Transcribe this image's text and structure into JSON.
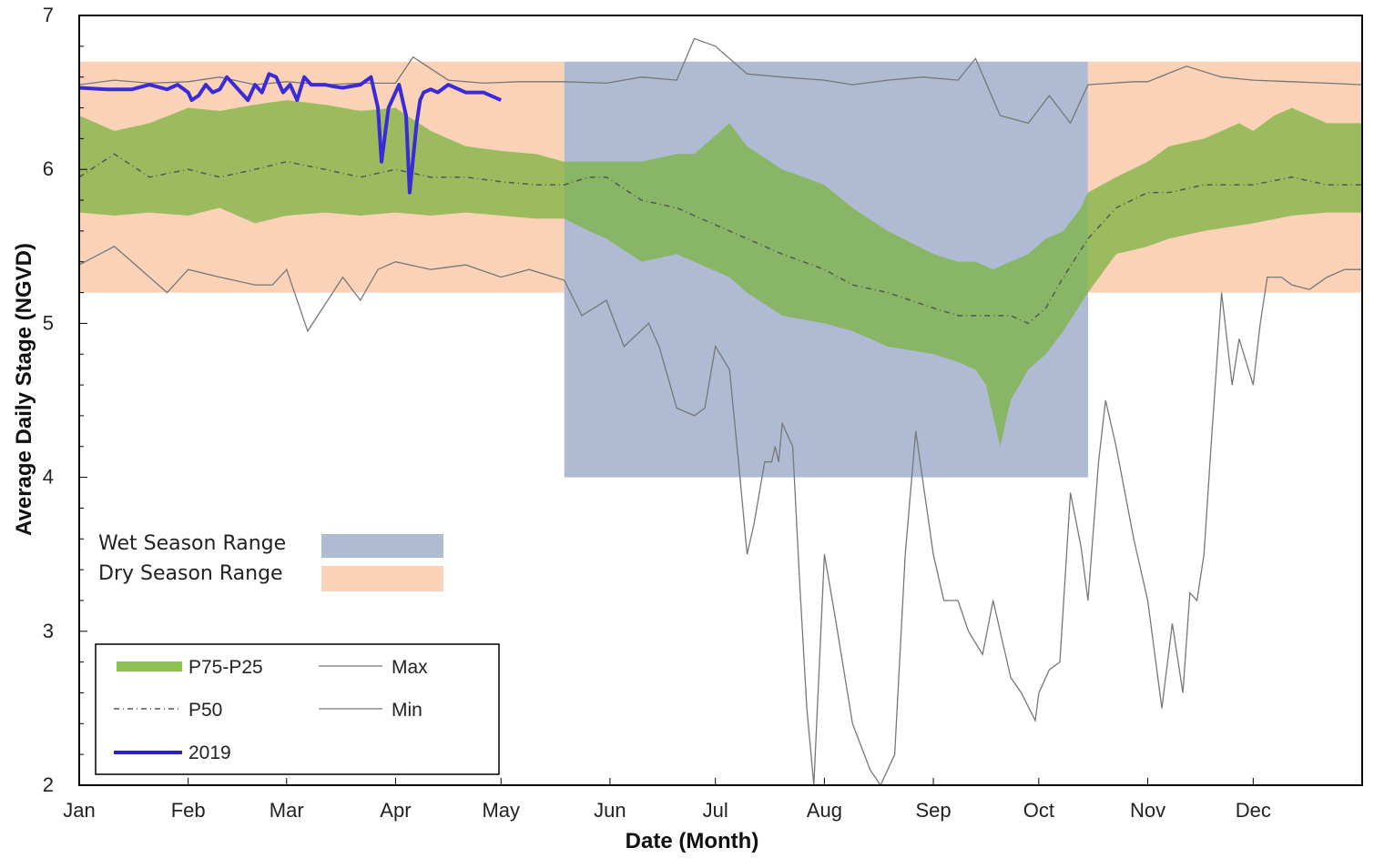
{
  "chart_data": {
    "type": "area",
    "title": "",
    "xlabel": "Date (Month)",
    "ylabel": "Average Daily Stage (NGVD)",
    "ylim": [
      2,
      7
    ],
    "yticks": [
      "2",
      "3",
      "4",
      "5",
      "6",
      "7"
    ],
    "xlim": [
      0,
      365
    ],
    "months": [
      "Jan",
      "Feb",
      "Mar",
      "Apr",
      "May",
      "Jun",
      "Jul",
      "Aug",
      "Sep",
      "Oct",
      "Nov",
      "Dec"
    ],
    "month_start_day": [
      0,
      31,
      59,
      90,
      120,
      151,
      181,
      212,
      243,
      273,
      304,
      334
    ],
    "colors": {
      "wet": "#aebbd2",
      "dry": "#fad2b8",
      "band": "#7cb342",
      "band_wet": "#5b9a3e",
      "p50": "#555555",
      "max": "#777777",
      "min": "#777777",
      "y2019": "#3a2bd6"
    },
    "ranges": [
      {
        "name": "Dry Season Range",
        "x0": 0,
        "x1": 138,
        "y0": 5.2,
        "y1": 6.7,
        "kind": "dry"
      },
      {
        "name": "Wet Season Range",
        "x0": 138,
        "x1": 287,
        "y0": 4.0,
        "y1": 6.7,
        "kind": "wet"
      },
      {
        "name": "Dry Season Range",
        "x0": 287,
        "x1": 365,
        "y0": 5.2,
        "y1": 6.7,
        "kind": "dry"
      }
    ],
    "legend": {
      "wet_label": "Wet Season Range",
      "dry_label": "Dry Season Range",
      "p75_label": "P75-P25",
      "p50_label": "P50",
      "y2019_label": "2019",
      "max_label": "Max",
      "min_label": "Min"
    },
    "series": {
      "max": {
        "x": [
          0,
          10,
          20,
          31,
          40,
          50,
          59,
          70,
          80,
          90,
          95,
          105,
          115,
          125,
          138,
          150,
          160,
          170,
          175,
          181,
          190,
          200,
          212,
          220,
          230,
          240,
          250,
          255,
          262,
          270,
          276,
          282,
          287,
          300,
          304,
          315,
          325,
          334,
          345,
          355,
          365
        ],
        "y": [
          6.55,
          6.58,
          6.56,
          6.57,
          6.6,
          6.55,
          6.57,
          6.55,
          6.56,
          6.56,
          6.73,
          6.58,
          6.56,
          6.57,
          6.57,
          6.56,
          6.6,
          6.58,
          6.85,
          6.8,
          6.62,
          6.6,
          6.58,
          6.55,
          6.58,
          6.6,
          6.58,
          6.72,
          6.35,
          6.3,
          6.48,
          6.3,
          6.55,
          6.57,
          6.57,
          6.67,
          6.6,
          6.58,
          6.57,
          6.56,
          6.55
        ]
      },
      "min": {
        "x": [
          0,
          10,
          20,
          25,
          31,
          40,
          50,
          55,
          59,
          65,
          75,
          80,
          85,
          90,
          100,
          110,
          120,
          128,
          138,
          143,
          150,
          155,
          162,
          165,
          170,
          175,
          178,
          181,
          185,
          188,
          190,
          192,
          195,
          197,
          198,
          199,
          200,
          203,
          205,
          207,
          209,
          212,
          215,
          220,
          225,
          228,
          232,
          235,
          238,
          243,
          246,
          250,
          253,
          257,
          260,
          265,
          268,
          272,
          273,
          276,
          279,
          282,
          285,
          287,
          290,
          292,
          295,
          300,
          304,
          308,
          311,
          314,
          316,
          318,
          320,
          322,
          325,
          328,
          330,
          334,
          336,
          338,
          340,
          342,
          345,
          350,
          355,
          360,
          365
        ],
        "y": [
          5.38,
          5.5,
          5.3,
          5.2,
          5.35,
          5.3,
          5.25,
          5.25,
          5.35,
          4.95,
          5.3,
          5.15,
          5.35,
          5.4,
          5.35,
          5.38,
          5.3,
          5.35,
          5.28,
          5.05,
          5.15,
          4.85,
          5.0,
          4.85,
          4.45,
          4.4,
          4.45,
          4.85,
          4.7,
          4.0,
          3.5,
          3.7,
          4.1,
          4.1,
          4.2,
          4.1,
          4.35,
          4.2,
          3.3,
          2.5,
          2.0,
          3.5,
          3.1,
          2.4,
          2.1,
          2.0,
          2.2,
          3.5,
          4.3,
          3.5,
          3.2,
          3.2,
          3.0,
          2.85,
          3.2,
          2.7,
          2.6,
          2.42,
          2.6,
          2.75,
          2.8,
          3.9,
          3.55,
          3.2,
          4.1,
          4.5,
          4.2,
          3.6,
          3.2,
          2.5,
          3.05,
          2.6,
          3.25,
          3.2,
          3.5,
          4.2,
          5.2,
          4.6,
          4.9,
          4.6,
          5.0,
          5.3,
          5.3,
          5.3,
          5.25,
          5.22,
          5.3,
          5.35,
          5.35
        ]
      },
      "p75": {
        "x": [
          0,
          10,
          20,
          31,
          40,
          50,
          59,
          70,
          80,
          90,
          100,
          110,
          120,
          130,
          138,
          145,
          150,
          160,
          170,
          175,
          180,
          185,
          190,
          200,
          212,
          220,
          230,
          243,
          250,
          255,
          260,
          265,
          270,
          275,
          280,
          285,
          287,
          295,
          304,
          310,
          320,
          330,
          334,
          340,
          345,
          355,
          365
        ],
        "y": [
          6.35,
          6.25,
          6.3,
          6.4,
          6.38,
          6.42,
          6.45,
          6.42,
          6.38,
          6.4,
          6.25,
          6.15,
          6.12,
          6.1,
          6.05,
          6.05,
          6.05,
          6.05,
          6.1,
          6.1,
          6.2,
          6.3,
          6.15,
          6.0,
          5.9,
          5.75,
          5.6,
          5.45,
          5.4,
          5.4,
          5.35,
          5.4,
          5.45,
          5.55,
          5.6,
          5.75,
          5.85,
          5.95,
          6.05,
          6.15,
          6.2,
          6.3,
          6.25,
          6.35,
          6.4,
          6.3,
          6.3
        ]
      },
      "p25": {
        "x": [
          0,
          10,
          20,
          31,
          40,
          50,
          59,
          70,
          80,
          90,
          100,
          110,
          120,
          130,
          138,
          145,
          150,
          160,
          170,
          175,
          180,
          185,
          190,
          200,
          212,
          220,
          230,
          243,
          250,
          255,
          258,
          262,
          265,
          270,
          275,
          280,
          287,
          295,
          304,
          310,
          320,
          334,
          345,
          355,
          365
        ],
        "y": [
          5.72,
          5.7,
          5.72,
          5.7,
          5.75,
          5.65,
          5.7,
          5.72,
          5.7,
          5.72,
          5.7,
          5.72,
          5.7,
          5.68,
          5.68,
          5.6,
          5.55,
          5.4,
          5.45,
          5.4,
          5.35,
          5.3,
          5.2,
          5.05,
          5.0,
          4.95,
          4.85,
          4.8,
          4.75,
          4.7,
          4.6,
          4.2,
          4.5,
          4.7,
          4.8,
          4.95,
          5.2,
          5.45,
          5.5,
          5.55,
          5.6,
          5.65,
          5.7,
          5.72,
          5.72
        ]
      },
      "p50": {
        "x": [
          0,
          10,
          20,
          31,
          40,
          50,
          59,
          70,
          80,
          90,
          100,
          110,
          120,
          130,
          138,
          145,
          150,
          160,
          170,
          175,
          180,
          185,
          190,
          200,
          212,
          220,
          230,
          243,
          250,
          255,
          260,
          265,
          270,
          275,
          280,
          287,
          295,
          304,
          310,
          320,
          334,
          345,
          355,
          365
        ],
        "y": [
          5.95,
          6.1,
          5.95,
          6.0,
          5.95,
          6.0,
          6.05,
          6.0,
          5.95,
          6.0,
          5.95,
          5.95,
          5.92,
          5.9,
          5.9,
          5.95,
          5.95,
          5.8,
          5.75,
          5.7,
          5.65,
          5.6,
          5.55,
          5.45,
          5.35,
          5.25,
          5.2,
          5.1,
          5.05,
          5.05,
          5.05,
          5.05,
          5.0,
          5.1,
          5.3,
          5.55,
          5.75,
          5.85,
          5.85,
          5.9,
          5.9,
          5.95,
          5.9,
          5.9
        ]
      },
      "y2019": {
        "x": [
          0,
          8,
          15,
          20,
          25,
          28,
          31,
          32,
          34,
          36,
          38,
          40,
          42,
          44,
          46,
          48,
          50,
          52,
          54,
          56,
          58,
          60,
          62,
          64,
          66,
          68,
          70,
          72,
          75,
          80,
          83,
          85,
          86,
          88,
          90,
          91,
          93,
          94,
          96,
          97,
          98,
          100,
          102,
          105,
          110,
          115,
          120
        ],
        "y": [
          6.53,
          6.52,
          6.52,
          6.55,
          6.52,
          6.55,
          6.5,
          6.45,
          6.48,
          6.55,
          6.5,
          6.52,
          6.6,
          6.55,
          6.5,
          6.45,
          6.55,
          6.5,
          6.62,
          6.6,
          6.5,
          6.55,
          6.45,
          6.6,
          6.55,
          6.55,
          6.55,
          6.54,
          6.53,
          6.55,
          6.6,
          6.4,
          6.05,
          6.4,
          6.5,
          6.55,
          6.35,
          5.85,
          6.3,
          6.45,
          6.5,
          6.52,
          6.5,
          6.55,
          6.5,
          6.5,
          6.45
        ]
      }
    }
  }
}
